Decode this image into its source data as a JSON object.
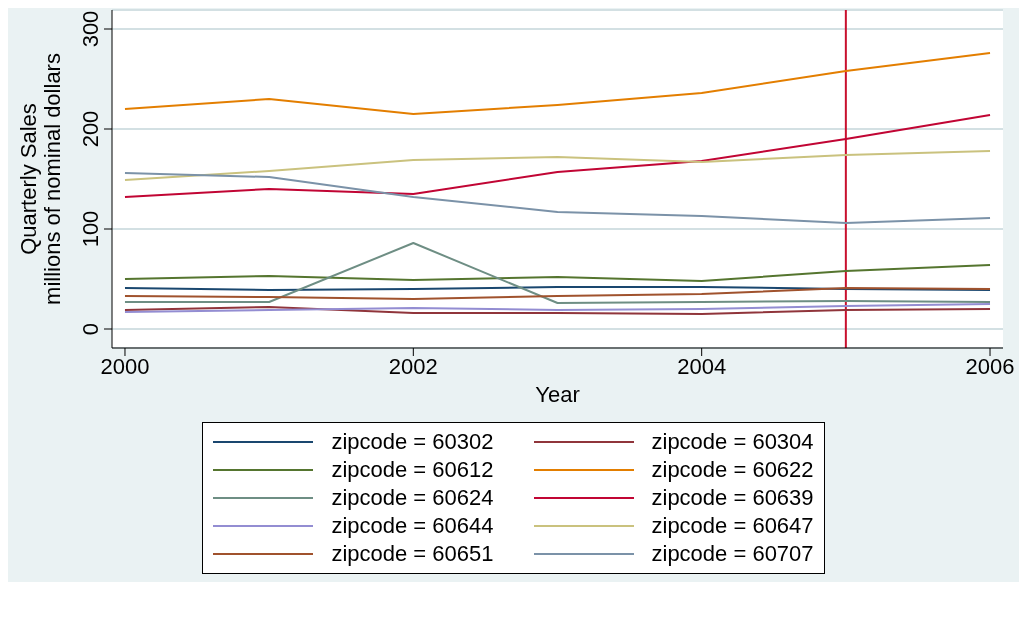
{
  "chart_data": {
    "type": "line",
    "xlabel": "Year",
    "ylabel": "Quarterly Sales\nmillions of nominal dollars",
    "x": [
      2000,
      2001,
      2002,
      2003,
      2004,
      2005,
      2006
    ],
    "xlim": [
      1999.91,
      2006.09
    ],
    "xticks": [
      2000,
      2002,
      2004,
      2006
    ],
    "ylim": [
      -19,
      319
    ],
    "yticks": [
      0,
      100,
      200,
      300
    ],
    "grid": "y",
    "legend": "bottom",
    "marker": "none",
    "line_style": "solid",
    "ref_lines": [
      {
        "axis": "x",
        "value": 2005,
        "color": "#c8102e"
      }
    ],
    "series": [
      {
        "name": "zipcode = 60302",
        "color": "#1a476f",
        "values": [
          41,
          39,
          40,
          42,
          42,
          40,
          39
        ]
      },
      {
        "name": "zipcode = 60304",
        "color": "#90353b",
        "values": [
          19,
          22,
          16,
          16,
          15,
          19,
          20
        ]
      },
      {
        "name": "zipcode = 60612",
        "color": "#55752f",
        "values": [
          50,
          53,
          49,
          52,
          48,
          58,
          64
        ]
      },
      {
        "name": "zipcode = 60622",
        "color": "#e37e00",
        "values": [
          220,
          230,
          215,
          224,
          236,
          258,
          276
        ]
      },
      {
        "name": "zipcode = 60624",
        "color": "#6e8e84",
        "values": [
          27,
          27,
          86,
          26,
          27,
          28,
          27
        ]
      },
      {
        "name": "zipcode = 60639",
        "color": "#c10534",
        "values": [
          132,
          140,
          135,
          157,
          168,
          190,
          214
        ]
      },
      {
        "name": "zipcode = 60644",
        "color": "#938dd2",
        "values": [
          17,
          19,
          21,
          19,
          20,
          23,
          25
        ]
      },
      {
        "name": "zipcode = 60647",
        "color": "#cac27e",
        "values": [
          149,
          158,
          169,
          172,
          167,
          174,
          178
        ]
      },
      {
        "name": "zipcode = 60651",
        "color": "#a0522d",
        "values": [
          33,
          32,
          30,
          33,
          35,
          41,
          40
        ]
      },
      {
        "name": "zipcode = 60707",
        "color": "#7b92a8",
        "values": [
          156,
          152,
          132,
          117,
          113,
          106,
          111
        ]
      }
    ]
  }
}
